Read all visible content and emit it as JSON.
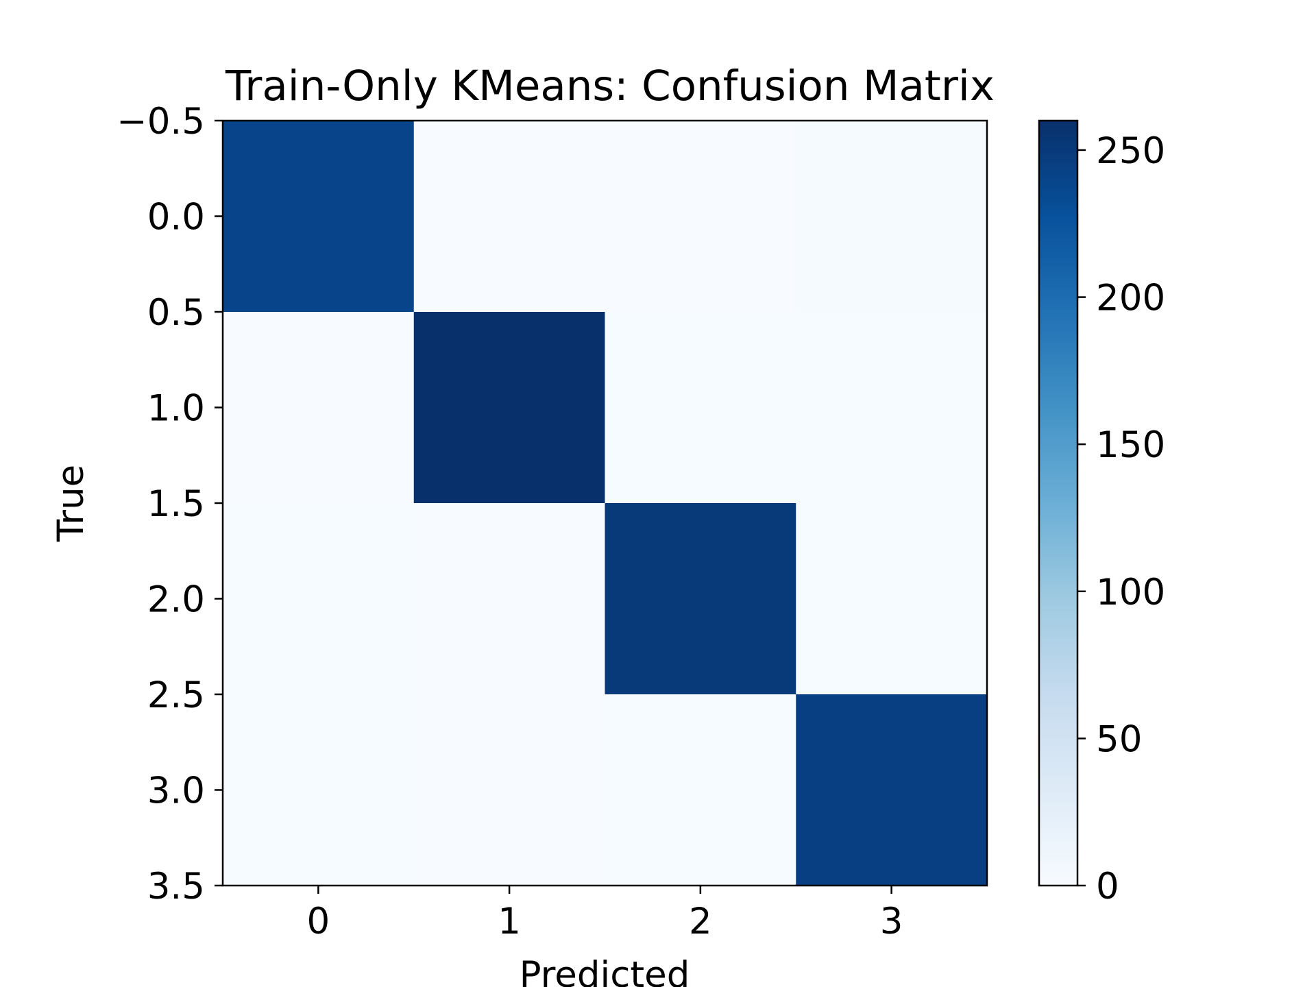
{
  "chart_data": {
    "type": "heatmap",
    "title": "Train-Only KMeans: Confusion Matrix",
    "xlabel": "Predicted",
    "ylabel": "True",
    "x_categories": [
      "0",
      "1",
      "2",
      "3"
    ],
    "y_ticks": [
      "−0.5",
      "0.0",
      "0.5",
      "1.0",
      "1.5",
      "2.0",
      "2.5",
      "3.0",
      "3.5"
    ],
    "y_tick_values": [
      -0.5,
      0.0,
      0.5,
      1.0,
      1.5,
      2.0,
      2.5,
      3.0,
      3.5
    ],
    "matrix": [
      [
        240,
        0,
        0,
        3
      ],
      [
        0,
        260,
        1,
        1
      ],
      [
        1,
        0,
        250,
        1
      ],
      [
        1,
        0,
        1,
        245
      ]
    ],
    "colormap": "Blues",
    "colorbar": {
      "min": 0,
      "max": 260,
      "ticks": [
        "0",
        "50",
        "100",
        "150",
        "200",
        "250"
      ],
      "tick_values": [
        0,
        50,
        100,
        150,
        200,
        250
      ]
    },
    "grid": false
  }
}
